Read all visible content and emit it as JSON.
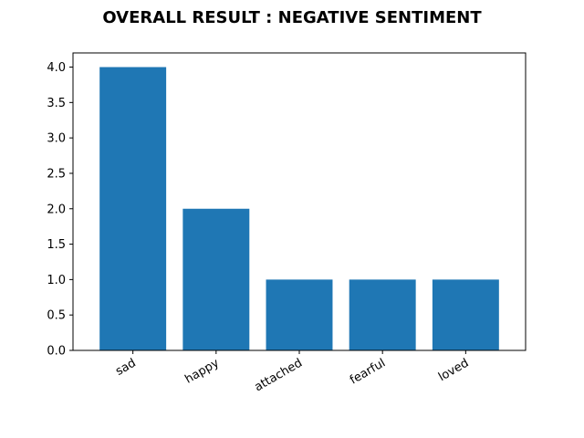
{
  "chart_data": {
    "type": "bar",
    "title": "OVERALL RESULT : NEGATIVE SENTIMENT",
    "categories": [
      "sad",
      "happy",
      "attached",
      "fearful",
      "loved"
    ],
    "values": [
      4,
      2,
      1,
      1,
      1
    ],
    "xlabel": "",
    "ylabel": "",
    "ylim": [
      0,
      4.2
    ],
    "yticks": [
      "0.0",
      "0.5",
      "1.0",
      "1.5",
      "2.0",
      "2.5",
      "3.0",
      "3.5",
      "4.0"
    ],
    "bar_color": "#1f77b4",
    "grid": false,
    "legend": "none"
  }
}
